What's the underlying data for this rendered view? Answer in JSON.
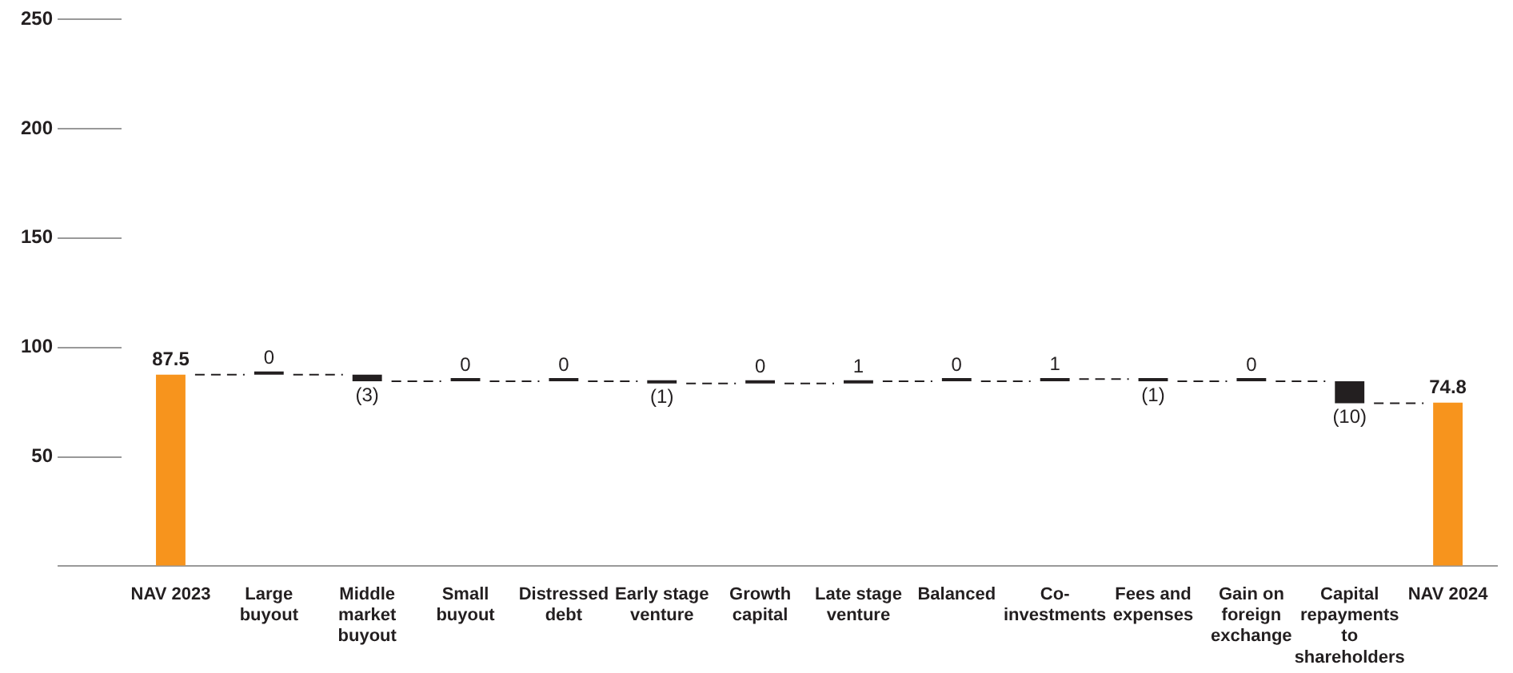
{
  "chart_data": {
    "type": "bar",
    "categories": [
      "NAV 2023",
      "Large buyout",
      "Middle market buyout",
      "Small buyout",
      "Distressed debt",
      "Early stage venture",
      "Growth capital",
      "Late stage venture",
      "Balanced",
      "Co-investments",
      "Fees and expenses",
      "Gain on foreign exchange",
      "Capital repayments to shareholders",
      "NAV 2024"
    ],
    "values": [
      87.5,
      0,
      -3,
      0,
      0,
      -1,
      0,
      1,
      0,
      1,
      -1,
      0,
      -10,
      74.8
    ],
    "base": [
      0,
      87.5,
      87.5,
      84.5,
      84.5,
      84.5,
      83.5,
      83.5,
      84.5,
      84.5,
      85.5,
      84.5,
      84.5,
      0
    ],
    "colors": [
      "#f7941d",
      "#231f20",
      "#231f20",
      "#231f20",
      "#231f20",
      "#231f20",
      "#231f20",
      "#231f20",
      "#231f20",
      "#231f20",
      "#231f20",
      "#231f20",
      "#231f20",
      "#f7941d"
    ],
    "value_labels": [
      "87.5",
      "0",
      "(3)",
      "0",
      "0",
      "(1)",
      "0",
      "1",
      "0",
      "1",
      "(1)",
      "0",
      "(10)",
      "74.8"
    ],
    "ylim": [
      0,
      250
    ],
    "yticks": [
      {
        "value": 0,
        "label": null
      },
      50,
      100,
      150,
      200,
      250
    ],
    "legend": false
  }
}
